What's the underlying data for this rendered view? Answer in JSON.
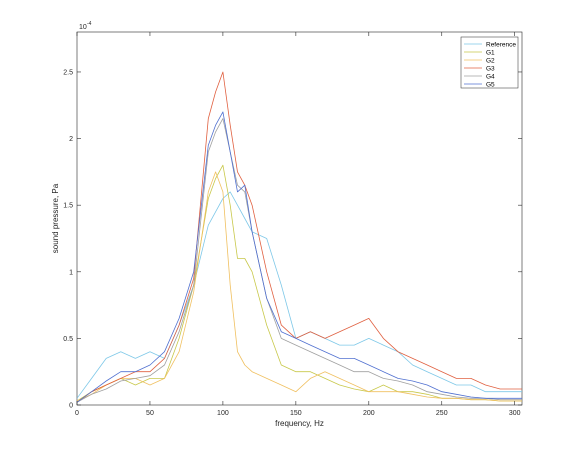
{
  "chart_data": {
    "type": "line",
    "title": "",
    "xlabel": "frequency, Hz",
    "ylabel": "sound pressure, Pa",
    "exponent_label": "10",
    "exponent_power": "-4",
    "xlim": [
      0,
      305
    ],
    "ylim": [
      0,
      0.00028
    ],
    "xticks": [
      0,
      50,
      100,
      150,
      200,
      250,
      300
    ],
    "yticks": [
      0,
      5e-05,
      0.0001,
      0.00015,
      0.0002,
      0.00025
    ],
    "ytick_labels": [
      "0",
      "0.5",
      "1",
      "1.5",
      "2",
      "2.5"
    ],
    "grid": false,
    "legend_position": "top-right",
    "colors": {
      "Reference": "#7ec8e8",
      "G1": "#c8c84a",
      "G2": "#f0c060",
      "G3": "#e06040",
      "G4": "#a0a0a0",
      "G5": "#5070d0"
    },
    "x": [
      0,
      10,
      20,
      30,
      40,
      50,
      60,
      70,
      80,
      90,
      95,
      100,
      105,
      110,
      115,
      120,
      130,
      140,
      150,
      160,
      170,
      180,
      190,
      200,
      210,
      220,
      230,
      240,
      250,
      260,
      270,
      280,
      290,
      300,
      305
    ],
    "series": [
      {
        "name": "Reference",
        "values": [
          5e-06,
          2e-05,
          3.5e-05,
          4e-05,
          3.5e-05,
          4e-05,
          3.5e-05,
          6e-05,
          9e-05,
          0.000135,
          0.000145,
          0.000155,
          0.00016,
          0.00015,
          0.00014,
          0.00013,
          0.000125,
          9e-05,
          5e-05,
          5.5e-05,
          5e-05,
          4.5e-05,
          4.5e-05,
          5e-05,
          4.5e-05,
          4e-05,
          3e-05,
          2.5e-05,
          2e-05,
          1.5e-05,
          1.5e-05,
          1e-05,
          1e-05,
          1e-05,
          1e-05
        ]
      },
      {
        "name": "G1",
        "values": [
          3e-06,
          1e-05,
          1.5e-05,
          2e-05,
          1.5e-05,
          2e-05,
          2e-05,
          5e-05,
          9e-05,
          0.000155,
          0.00017,
          0.00018,
          0.00015,
          0.00011,
          0.00011,
          0.0001,
          6e-05,
          3e-05,
          2.5e-05,
          2.5e-05,
          2e-05,
          1.5e-05,
          1.2e-05,
          1e-05,
          1.5e-05,
          1e-05,
          1e-05,
          8e-06,
          5e-06,
          5e-06,
          4e-06,
          4e-06,
          3e-06,
          3e-06,
          3e-06
        ]
      },
      {
        "name": "G2",
        "values": [
          3e-06,
          8e-06,
          1.5e-05,
          2e-05,
          2e-05,
          1.5e-05,
          2e-05,
          4e-05,
          8.5e-05,
          0.00016,
          0.000175,
          0.00016,
          9e-05,
          4e-05,
          3e-05,
          2.5e-05,
          2e-05,
          1.5e-05,
          1e-05,
          2e-05,
          2.5e-05,
          2e-05,
          1.5e-05,
          1e-05,
          1e-05,
          1e-05,
          8e-06,
          6e-06,
          5e-06,
          5e-06,
          4e-06,
          4e-06,
          3e-06,
          3e-06,
          3e-06
        ]
      },
      {
        "name": "G3",
        "values": [
          2e-06,
          1e-05,
          1.5e-05,
          2e-05,
          2.5e-05,
          2.5e-05,
          3.5e-05,
          6e-05,
          9.5e-05,
          0.000215,
          0.000235,
          0.00025,
          0.00021,
          0.000175,
          0.000165,
          0.00015,
          0.0001,
          6e-05,
          5e-05,
          5.5e-05,
          5e-05,
          5.5e-05,
          6e-05,
          6.5e-05,
          5e-05,
          4e-05,
          3.5e-05,
          3e-05,
          2.5e-05,
          2e-05,
          2e-05,
          1.5e-05,
          1.2e-05,
          1.2e-05,
          1.2e-05
        ]
      },
      {
        "name": "G4",
        "values": [
          2e-06,
          8e-06,
          1.2e-05,
          1.8e-05,
          2e-05,
          2.2e-05,
          3e-05,
          5.5e-05,
          9e-05,
          0.00019,
          0.000205,
          0.000215,
          0.00019,
          0.000165,
          0.00016,
          0.00013,
          8e-05,
          5e-05,
          4.5e-05,
          4e-05,
          3.5e-05,
          3e-05,
          2.5e-05,
          2.5e-05,
          2e-05,
          1.8e-05,
          1.5e-05,
          1e-05,
          8e-06,
          6e-06,
          5e-06,
          5e-06,
          4e-06,
          4e-06,
          4e-06
        ]
      },
      {
        "name": "G5",
        "values": [
          2e-06,
          1e-05,
          1.8e-05,
          2.5e-05,
          2.5e-05,
          3e-05,
          4e-05,
          6.5e-05,
          0.0001,
          0.000195,
          0.00021,
          0.00022,
          0.00019,
          0.00016,
          0.000165,
          0.00013,
          8e-05,
          5.5e-05,
          5e-05,
          4.5e-05,
          4e-05,
          3.5e-05,
          3.5e-05,
          3e-05,
          2.5e-05,
          2e-05,
          1.8e-05,
          1.5e-05,
          1e-05,
          8e-06,
          6e-06,
          5e-06,
          5e-06,
          5e-06,
          5e-06
        ]
      }
    ]
  }
}
